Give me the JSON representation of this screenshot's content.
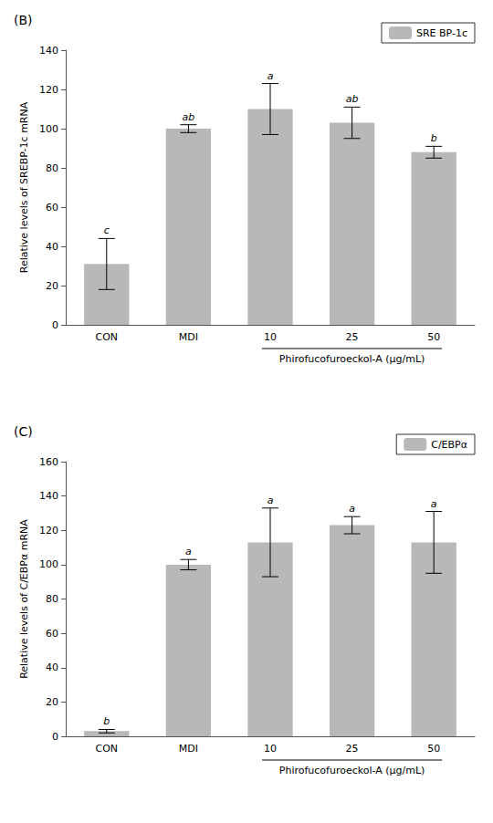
{
  "chart_data": [
    {
      "type": "bar",
      "title": "(B)",
      "categories": [
        "CON",
        "MDI",
        "10",
        "25",
        "50"
      ],
      "series": [
        {
          "name": "SRE BP-1c",
          "color": "#b8b8b8",
          "values": [
            31,
            100,
            110,
            103,
            88
          ],
          "errors": [
            13,
            2,
            13,
            8,
            3
          ],
          "sig_labels": [
            "c",
            "ab",
            "a",
            "ab",
            "b"
          ]
        }
      ],
      "ylabel": "Relative levels of SREBP-1c mRNA",
      "annotations": [
        {
          "text": "Phirofucofuroeckol-A (μg/mL)",
          "from": "10",
          "to": "50"
        }
      ],
      "ylim": [
        0,
        140
      ],
      "yticks": [
        0,
        20,
        40,
        60,
        80,
        100,
        120,
        140
      ],
      "legend": "upper right",
      "grid": false
    },
    {
      "type": "bar",
      "title": "(C)",
      "categories": [
        "CON",
        "MDI",
        "10",
        "25",
        "50"
      ],
      "series": [
        {
          "name": "C/EBPα",
          "color": "#b8b8b8",
          "values": [
            3,
            100,
            113,
            123,
            113
          ],
          "errors": [
            1,
            3,
            20,
            5,
            18
          ],
          "sig_labels": [
            "b",
            "a",
            "a",
            "a",
            "a"
          ]
        }
      ],
      "ylabel": "Relative levels of C/EBPα mRNA",
      "annotations": [
        {
          "text": "Phirofucofuroeckol-A (μg/mL)",
          "from": "10",
          "to": "50"
        }
      ],
      "ylim": [
        0,
        160
      ],
      "yticks": [
        0,
        20,
        40,
        60,
        80,
        100,
        120,
        140,
        160
      ],
      "legend": "upper right",
      "grid": false
    }
  ]
}
